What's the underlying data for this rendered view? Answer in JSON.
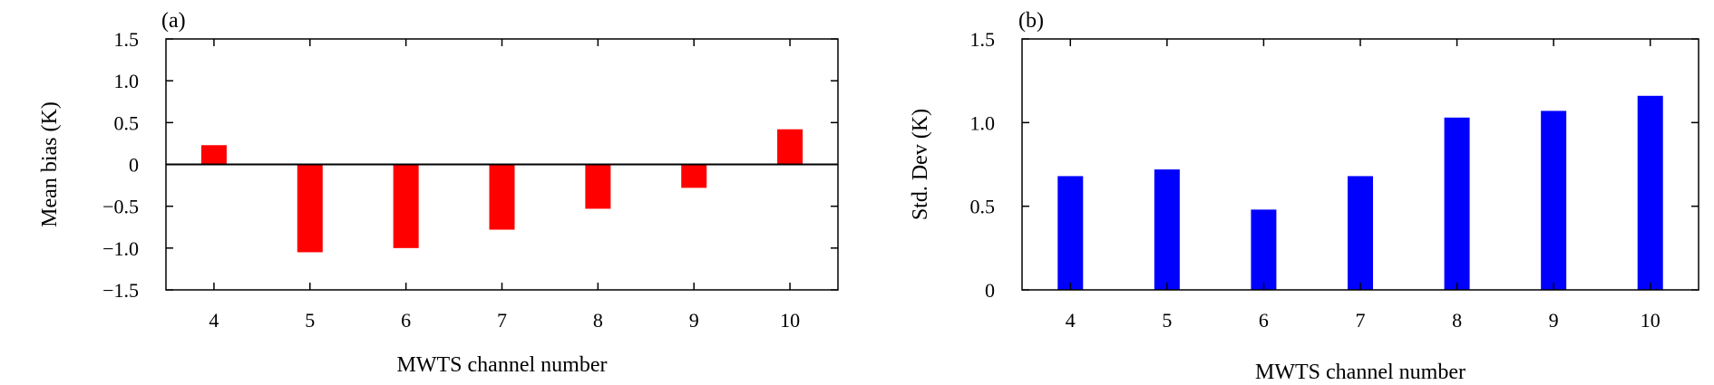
{
  "chart_data": [
    {
      "type": "bar",
      "panel_label": "(a)",
      "categories": [
        "4",
        "5",
        "6",
        "7",
        "8",
        "9",
        "10"
      ],
      "values": [
        0.23,
        -1.05,
        -1.0,
        -0.78,
        -0.53,
        -0.28,
        0.42
      ],
      "xlabel": "MWTS channel number",
      "ylabel": "Mean bias (K)",
      "ylim": [
        -1.5,
        1.5
      ],
      "yticks": [
        -1.5,
        -1.0,
        -0.5,
        0,
        0.5,
        1.0,
        1.5
      ],
      "ytick_labels": [
        "−1.5",
        "−1.0",
        "−0.5",
        "0",
        "0.5",
        "1.0",
        "1.5"
      ],
      "bar_color": "#ff0000",
      "zero_line": true,
      "grid": false
    },
    {
      "type": "bar",
      "panel_label": "(b)",
      "categories": [
        "4",
        "5",
        "6",
        "7",
        "8",
        "9",
        "10"
      ],
      "values": [
        0.68,
        0.72,
        0.48,
        0.68,
        1.03,
        1.07,
        1.16
      ],
      "xlabel": "MWTS channel number",
      "ylabel": "Std. Dev (K)",
      "ylim": [
        0,
        1.5
      ],
      "yticks": [
        0,
        0.5,
        1.0,
        1.5
      ],
      "ytick_labels": [
        "0",
        "0.5",
        "1.0",
        "1.5"
      ],
      "bar_color": "#0000ff",
      "zero_line": false,
      "grid": false
    }
  ]
}
